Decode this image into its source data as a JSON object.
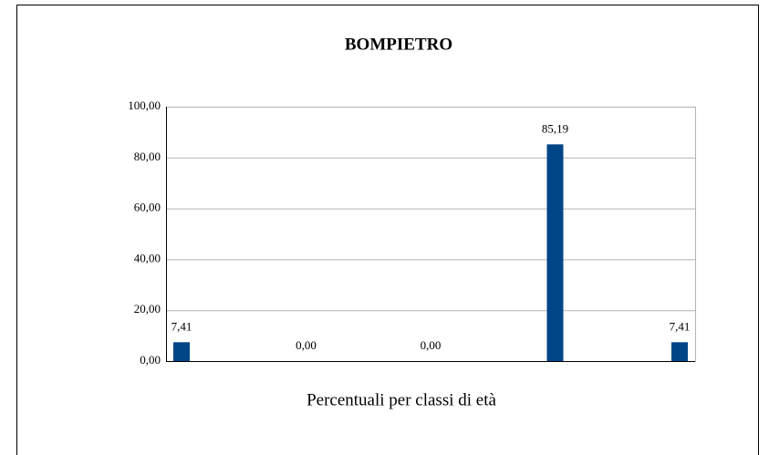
{
  "chart_data": {
    "type": "bar",
    "title": "BOMPIETRO",
    "x_label": "Percentuali per classi di età",
    "categories": [
      null,
      null,
      null,
      null,
      null
    ],
    "values": [
      7.41,
      0,
      0,
      85.19,
      7.41
    ],
    "value_labels": [
      "7,41",
      "0,00",
      "0,00",
      "85,19",
      "7,41"
    ],
    "color": "#004586",
    "ylim": [
      0,
      100
    ],
    "yticks": [
      {
        "value": 0,
        "label": "0,00"
      },
      {
        "value": 20,
        "label": "20,00"
      },
      {
        "value": 40,
        "label": "40,00"
      },
      {
        "value": 60,
        "label": "60,00"
      },
      {
        "value": 80,
        "label": "80,00"
      },
      {
        "value": 100,
        "label": "100,00"
      }
    ],
    "grid": true
  }
}
